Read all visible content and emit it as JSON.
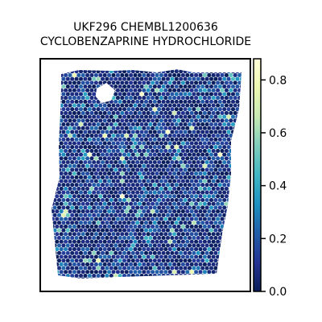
{
  "chart_data": {
    "type": "heatmap",
    "title_lines": [
      "UKF296 CHEMBL1200636",
      "CYCLOBENZAPRINE HYDROCHLORIDE"
    ],
    "xlabel": "",
    "ylabel": "",
    "colorbar": {
      "range": [
        0.0,
        0.88
      ],
      "ticks": [
        0.0,
        0.2,
        0.4,
        0.6,
        0.8
      ],
      "tick_labels": [
        "0.0",
        "0.2",
        "0.4",
        "0.6",
        "0.8"
      ],
      "colormap": "YlGnBu",
      "stops": [
        "#081d58",
        "#253494",
        "#225ea8",
        "#1d91c0",
        "#41b6c4",
        "#7fcdbb",
        "#c7e9b4",
        "#edf8b1",
        "#ffffd9"
      ]
    },
    "spots": {
      "description": "hexagonal spatial spot grid; most values 0.0-0.3, few bright spots up to ~0.85",
      "typical_range": [
        0.0,
        0.3
      ],
      "max_value": 0.85
    },
    "grid": false
  },
  "colors": {
    "axes_frame": "#000000",
    "background": "#ffffff"
  }
}
